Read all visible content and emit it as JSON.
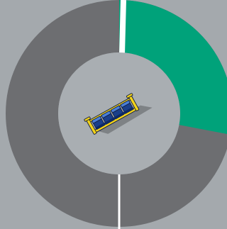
{
  "radial_menu": {
    "progress": 0.28,
    "colors": {
      "background": "#a4a9ad",
      "ring_track": "#6d6e71",
      "ring_fill": "#00a27a",
      "marker": "#ffffff",
      "hub": "#a9aeb2"
    },
    "center_item": {
      "icon": "cargo-container-module-icon",
      "colors": {
        "frame": "#f2d21a",
        "frame_outline": "#0f1b3c",
        "crate_top": "#4b7fd6",
        "crate_side": "#1a3f8a",
        "crate_dark": "#0e2a66",
        "shadow": "#000000"
      }
    }
  }
}
